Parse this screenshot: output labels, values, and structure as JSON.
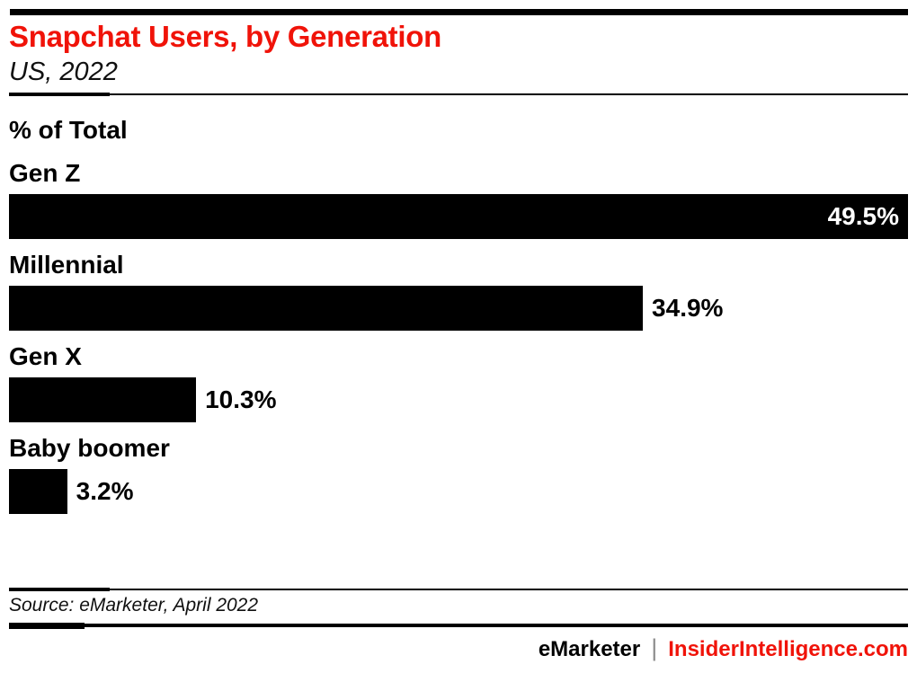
{
  "header": {
    "title": "Snapchat Users, by Generation",
    "subtitle": "US, 2022"
  },
  "chart": {
    "units_label": "% of Total"
  },
  "chart_data": {
    "type": "bar",
    "orientation": "horizontal",
    "title": "Snapchat Users, by Generation",
    "subtitle": "US, 2022",
    "value_axis_label": "% of Total",
    "categories": [
      "Gen Z",
      "Millennial",
      "Gen X",
      "Baby boomer"
    ],
    "values": [
      49.5,
      34.9,
      10.3,
      3.2
    ],
    "value_labels": [
      "49.5%",
      "34.9%",
      "10.3%",
      "3.2%"
    ],
    "xlim": [
      0,
      49.5
    ],
    "bar_color": "#000000",
    "grid": false,
    "legend": false,
    "value_label_position": "inside-end for max bar, outside-end otherwise"
  },
  "footer": {
    "source": "Source: eMarketer, April 2022",
    "brand_left": "eMarketer",
    "separator": "|",
    "brand_right": "InsiderIntelligence.com"
  },
  "colors": {
    "accent_red": "#f01309",
    "bar_black": "#000000",
    "separator_gray": "#8c8c8c",
    "text_black": "#000000"
  }
}
